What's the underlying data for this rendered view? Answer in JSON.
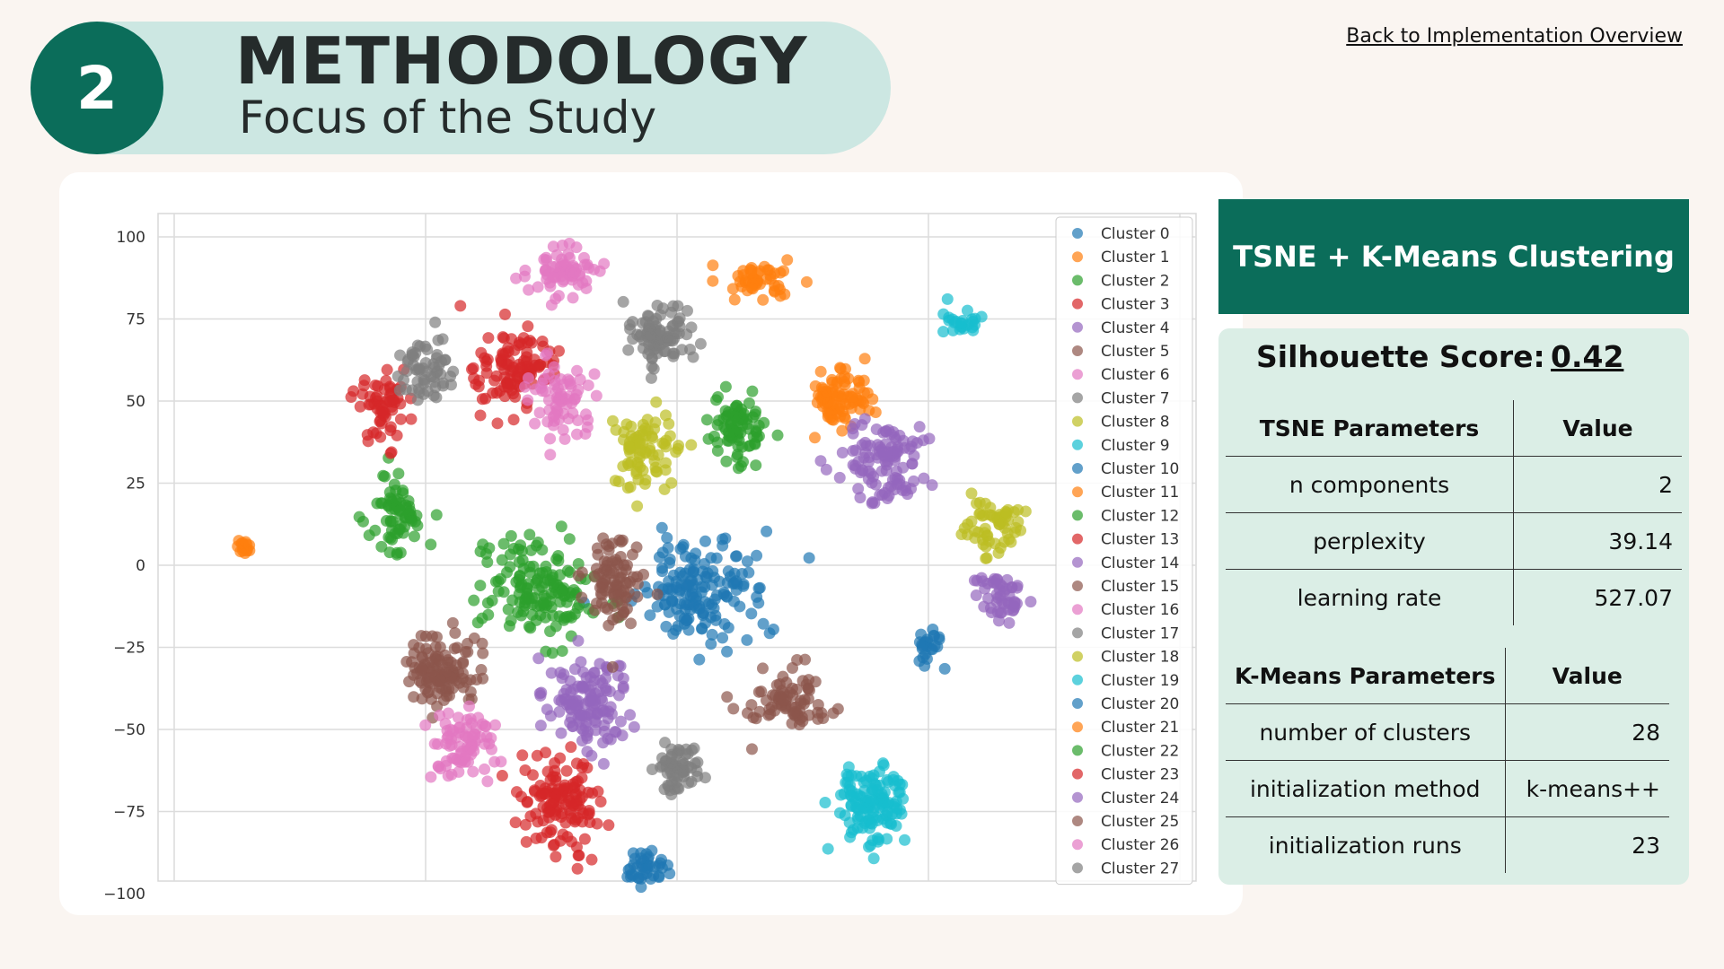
{
  "header": {
    "step_number": "2",
    "title": "METHODOLOGY",
    "subtitle": "Focus of the Study"
  },
  "nav": {
    "back_link": "Back to Implementation Overview"
  },
  "method_banner": "TSNE + K-Means Clustering",
  "silhouette": {
    "label": "Silhouette Score:",
    "value": "0.42"
  },
  "tsne_params": {
    "header": {
      "name": "TSNE Parameters",
      "value": "Value"
    },
    "rows": [
      {
        "name": "n components",
        "value": "2"
      },
      {
        "name": "perplexity",
        "value": "39.14"
      },
      {
        "name": "learning rate",
        "value": "527.07"
      }
    ]
  },
  "kmeans_params": {
    "header": {
      "name": "K-Means Parameters",
      "value": "Value"
    },
    "rows": [
      {
        "name": "number of clusters",
        "value": "28"
      },
      {
        "name": "initialization method",
        "value": "k-means++"
      },
      {
        "name": "initialization runs",
        "value": "23"
      }
    ]
  },
  "colors": {
    "accent": "#0b6d5a",
    "header_pill": "#cce7e2",
    "panel": "#dbeee6",
    "page_bg": "#faf5f1"
  },
  "chart_data": {
    "type": "scatter",
    "title": "",
    "xlabel": "",
    "ylabel": "",
    "ylim": [
      -100,
      100
    ],
    "xlim": [
      -100,
      100
    ],
    "y_ticks": [
      "100",
      "75",
      "50",
      "25",
      "0",
      "−25",
      "−50",
      "−75",
      "−100"
    ],
    "grid": true,
    "legend_position": "right",
    "palette": [
      "#1f77b4",
      "#ff7f0e",
      "#2ca02c",
      "#d62728",
      "#9467bd",
      "#8c564b",
      "#e377c2",
      "#7f7f7f",
      "#bcbd22",
      "#17becf"
    ],
    "series": [
      {
        "name": "Cluster 0",
        "center": [
          10,
          -8
        ],
        "spread": [
          16,
          11
        ],
        "n": 160
      },
      {
        "name": "Cluster 1",
        "center": [
          65,
          51
        ],
        "spread": [
          7,
          6
        ],
        "n": 90
      },
      {
        "name": "Cluster 2",
        "center": [
          -55,
          -8
        ],
        "spread": [
          14,
          11
        ],
        "n": 150
      },
      {
        "name": "Cluster 3",
        "center": [
          -64,
          60
        ],
        "spread": [
          10,
          8
        ],
        "n": 110
      },
      {
        "name": "Cluster 4",
        "center": [
          -35,
          -42
        ],
        "spread": [
          11,
          9
        ],
        "n": 130
      },
      {
        "name": "Cluster 5",
        "center": [
          -94,
          -32
        ],
        "spread": [
          10,
          8
        ],
        "n": 120
      },
      {
        "name": "Cluster 6",
        "center": [
          -44,
          90
        ],
        "spread": [
          10,
          5
        ],
        "n": 70
      },
      {
        "name": "Cluster 7",
        "center": [
          -8,
          70
        ],
        "spread": [
          8,
          6
        ],
        "n": 90
      },
      {
        "name": "Cluster 8",
        "center": [
          -12,
          35
        ],
        "spread": [
          7,
          8
        ],
        "n": 80
      },
      {
        "name": "Cluster 9",
        "center": [
          78,
          -73
        ],
        "spread": [
          9,
          9
        ],
        "n": 130
      },
      {
        "name": "Cluster 10",
        "center": [
          -12,
          -92
        ],
        "spread": [
          5,
          4
        ],
        "n": 40
      },
      {
        "name": "Cluster 11",
        "center": [
          -172,
          6
        ],
        "spread": [
          2,
          1.5
        ],
        "n": 16
      },
      {
        "name": "Cluster 12",
        "center": [
          -110,
          15
        ],
        "spread": [
          8,
          8
        ],
        "n": 70
      },
      {
        "name": "Cluster 13",
        "center": [
          -47,
          -72
        ],
        "spread": [
          11,
          9
        ],
        "n": 130
      },
      {
        "name": "Cluster 14",
        "center": [
          82,
          32
        ],
        "spread": [
          12,
          8
        ],
        "n": 110
      },
      {
        "name": "Cluster 15",
        "center": [
          -24,
          -4
        ],
        "spread": [
          8,
          10
        ],
        "n": 90
      },
      {
        "name": "Cluster 16",
        "center": [
          -47,
          50
        ],
        "spread": [
          8,
          8
        ],
        "n": 70
      },
      {
        "name": "Cluster 17",
        "center": [
          0,
          -62
        ],
        "spread": [
          7,
          6
        ],
        "n": 60
      },
      {
        "name": "Cluster 18",
        "center": [
          126,
          12
        ],
        "spread": [
          8,
          5
        ],
        "n": 60
      },
      {
        "name": "Cluster 19",
        "center": [
          112,
          74
        ],
        "spread": [
          5,
          3
        ],
        "n": 25
      },
      {
        "name": "Cluster 20",
        "center": [
          100,
          -24
        ],
        "spread": [
          4,
          4
        ],
        "n": 25
      },
      {
        "name": "Cluster 21",
        "center": [
          32,
          87
        ],
        "spread": [
          8,
          4
        ],
        "n": 50
      },
      {
        "name": "Cluster 22",
        "center": [
          24,
          42
        ],
        "spread": [
          8,
          7
        ],
        "n": 80
      },
      {
        "name": "Cluster 23",
        "center": [
          -116,
          48
        ],
        "spread": [
          7,
          8
        ],
        "n": 60
      },
      {
        "name": "Cluster 24",
        "center": [
          128,
          -10
        ],
        "spread": [
          6,
          5
        ],
        "n": 50
      },
      {
        "name": "Cluster 25",
        "center": [
          44,
          -42
        ],
        "spread": [
          12,
          6
        ],
        "n": 80
      },
      {
        "name": "Cluster 26",
        "center": [
          -84,
          -55
        ],
        "spread": [
          9,
          7
        ],
        "n": 80
      },
      {
        "name": "Cluster 27",
        "center": [
          -100,
          60
        ],
        "spread": [
          8,
          6
        ],
        "n": 60
      }
    ]
  }
}
